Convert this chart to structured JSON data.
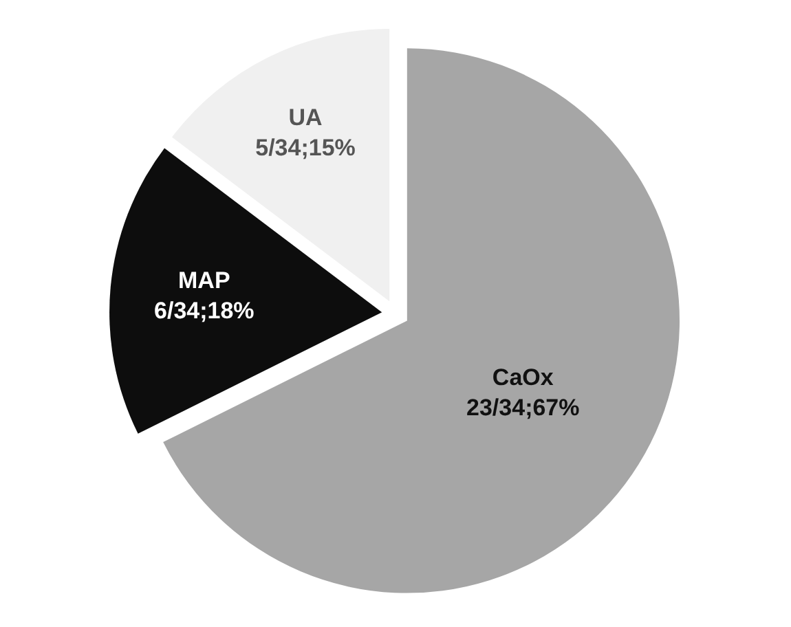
{
  "chart_data": {
    "type": "pie",
    "categories": [
      "CaOx",
      "MAP",
      "UA"
    ],
    "values": [
      23,
      6,
      5
    ],
    "value_labels": [
      "23/34;67%",
      "6/34;18%",
      "5/34;15%"
    ],
    "colors": [
      "#a6a6a6",
      "#0d0d0d",
      "#f0f0f0"
    ],
    "legend": false
  }
}
